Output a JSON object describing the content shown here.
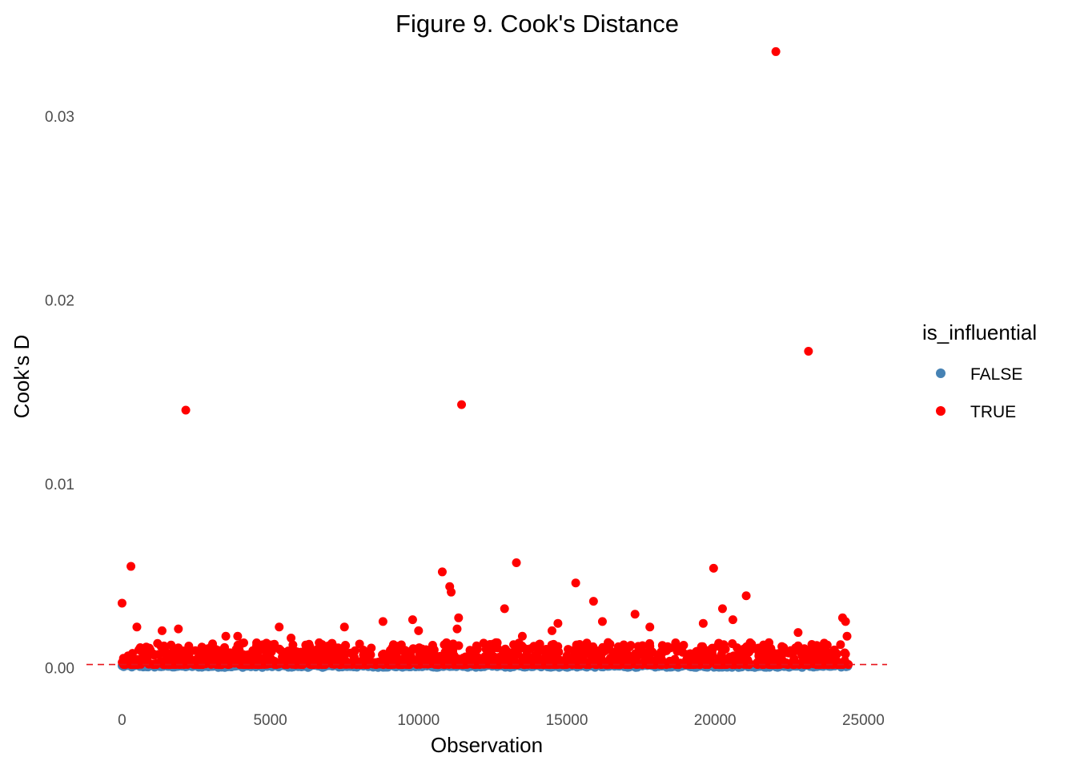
{
  "chart_data": {
    "type": "scatter",
    "title": "Figure 9. Cook's Distance",
    "xlabel": "Observation",
    "ylabel": "Cook's D",
    "xlim": [
      -1200,
      25800
    ],
    "ylim": [
      -0.0016,
      0.035
    ],
    "x_ticks": [
      0,
      5000,
      10000,
      15000,
      20000,
      25000
    ],
    "x_tick_labels": [
      "0",
      "5000",
      "10000",
      "15000",
      "20000",
      "25000"
    ],
    "y_ticks": [
      0,
      0.01,
      0.02,
      0.03
    ],
    "y_tick_labels": [
      "0.00",
      "0.01",
      "0.02",
      "0.03"
    ],
    "grid": false,
    "threshold": {
      "value": 0.00016,
      "style": "dashed",
      "color": "#e8141b"
    },
    "legend": {
      "title": "is_influential",
      "placement": "right",
      "entries": [
        {
          "label": "FALSE",
          "color": "#4682b4"
        },
        {
          "label": "TRUE",
          "color": "#ff0000"
        }
      ]
    },
    "series": [
      {
        "name": "FALSE",
        "color": "#4682b4",
        "x_range": [
          0,
          24500
        ],
        "y_range": [
          0,
          0.00016
        ],
        "note_points": "dense band of ~24500 observations with Cook's D below threshold"
      },
      {
        "name": "TRUE",
        "color": "#ff0000",
        "points": [
          [
            0,
            0.0035
          ],
          [
            300,
            0.0055
          ],
          [
            500,
            0.0022
          ],
          [
            1350,
            0.002
          ],
          [
            1900,
            0.0021
          ],
          [
            2150,
            0.014
          ],
          [
            3500,
            0.0017
          ],
          [
            3900,
            0.0017
          ],
          [
            5300,
            0.0022
          ],
          [
            5700,
            0.0016
          ],
          [
            7500,
            0.0022
          ],
          [
            8800,
            0.0025
          ],
          [
            9800,
            0.0026
          ],
          [
            10000,
            0.002
          ],
          [
            10800,
            0.0052
          ],
          [
            11050,
            0.0044
          ],
          [
            11100,
            0.0041
          ],
          [
            11300,
            0.0021
          ],
          [
            11450,
            0.0143
          ],
          [
            11350,
            0.0027
          ],
          [
            12900,
            0.0032
          ],
          [
            13300,
            0.0057
          ],
          [
            13500,
            0.0017
          ],
          [
            14500,
            0.002
          ],
          [
            14700,
            0.0024
          ],
          [
            15300,
            0.0046
          ],
          [
            15900,
            0.0036
          ],
          [
            16200,
            0.0025
          ],
          [
            17300,
            0.0029
          ],
          [
            17800,
            0.0022
          ],
          [
            19600,
            0.0024
          ],
          [
            19950,
            0.0054
          ],
          [
            20250,
            0.0032
          ],
          [
            20600,
            0.0026
          ],
          [
            21050,
            0.0039
          ],
          [
            22050,
            0.0335
          ],
          [
            22800,
            0.0019
          ],
          [
            23150,
            0.0172
          ],
          [
            24300,
            0.0027
          ],
          [
            24400,
            0.0025
          ],
          [
            24450,
            0.0017
          ]
        ]
      }
    ]
  }
}
